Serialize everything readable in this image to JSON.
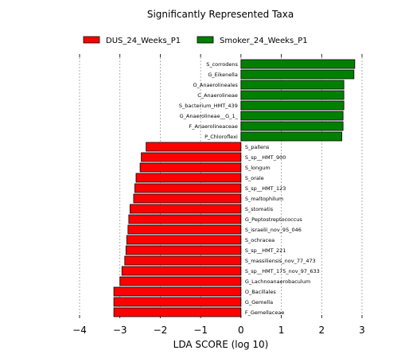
{
  "chart_data": {
    "type": "bar",
    "orientation": "horizontal",
    "title": "Significantly Represented Taxa",
    "xlabel": "LDA SCORE (log 10)",
    "ylabel": "",
    "xlim": [
      -4,
      3
    ],
    "xticks": [
      -4,
      -3,
      -2,
      -1,
      0,
      1,
      2,
      3
    ],
    "xtick_labels": [
      "−4",
      "−3",
      "−2",
      "−1",
      "0",
      "1",
      "2",
      "3"
    ],
    "grid": "vertical dashed",
    "legend_position": "top",
    "series": [
      {
        "name": "DUS_24_Weeks_P1",
        "color": "#ff0000",
        "categories": [
          "S_pallens",
          "S_sp__HMT_900",
          "S_longum",
          "S_orale",
          "S_sp__HMT_123",
          "S_maltophilum",
          "S_stomatis",
          "G_Peptostreptococcus",
          "S_israelii_nov_95_046",
          "S_ochracea",
          "S_sp__HMT_221",
          "S_massiliensis_nov_77_473",
          "S_sp__HMT_175_nov_97_633",
          "G_Lachnoanaerobaculum",
          "O_Bacillales",
          "G_Gemella",
          "F_Gemellaceae"
        ],
        "values": [
          -2.35,
          -2.47,
          -2.5,
          -2.6,
          -2.63,
          -2.66,
          -2.75,
          -2.78,
          -2.8,
          -2.83,
          -2.85,
          -2.88,
          -2.95,
          -3.0,
          -3.15,
          -3.15,
          -3.15
        ]
      },
      {
        "name": "Smoker_24_Weeks_P1",
        "color": "#008000",
        "categories": [
          "S_corrodens",
          "G_Eikenella",
          "O_Anaerolineales",
          "C_Anaerolineae",
          "S_bacterium_HMT_439",
          "G_Anaerolineae__G_1_",
          "F_Anaerolineaceae",
          "P_Chloroflexi"
        ],
        "values": [
          2.82,
          2.8,
          2.55,
          2.55,
          2.55,
          2.53,
          2.53,
          2.5
        ]
      }
    ],
    "bar_order_top_to_bottom": [
      "S_corrodens",
      "G_Eikenella",
      "O_Anaerolineales",
      "C_Anaerolineae",
      "S_bacterium_HMT_439",
      "G_Anaerolineae__G_1_",
      "F_Anaerolineaceae",
      "P_Chloroflexi",
      "S_pallens",
      "S_sp__HMT_900",
      "S_longum",
      "S_orale",
      "S_sp__HMT_123",
      "S_maltophilum",
      "S_stomatis",
      "G_Peptostreptococcus",
      "S_israelii_nov_95_046",
      "S_ochracea",
      "S_sp__HMT_221",
      "S_massiliensis_nov_77_473",
      "S_sp__HMT_175_nov_97_633",
      "G_Lachnoanaerobaculum",
      "O_Bacillales",
      "G_Gemella",
      "F_Gemellaceae"
    ]
  }
}
